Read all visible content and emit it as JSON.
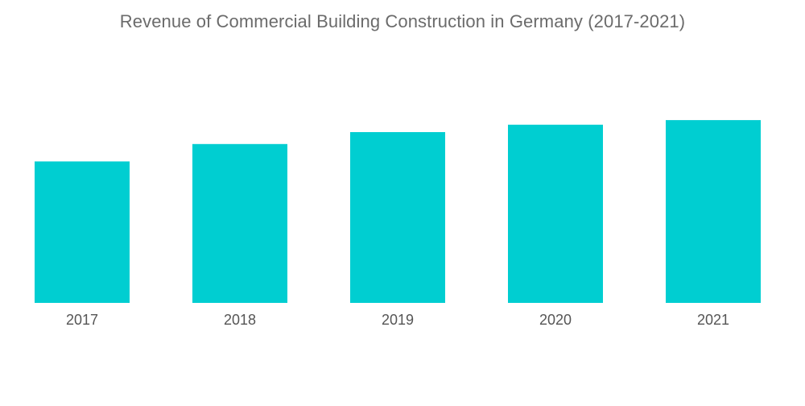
{
  "chart_data": {
    "type": "bar",
    "title": "Revenue of Commercial Building Construction in Germany (2017-2021)",
    "categories": [
      "2017",
      "2018",
      "2019",
      "2020",
      "2021"
    ],
    "values": [
      77,
      86.5,
      93,
      97,
      99.5
    ],
    "xlabel": "",
    "ylabel": "",
    "ylim": [
      0,
      100
    ],
    "grid": false,
    "legend": "none",
    "bar_color": "#00CED1"
  }
}
